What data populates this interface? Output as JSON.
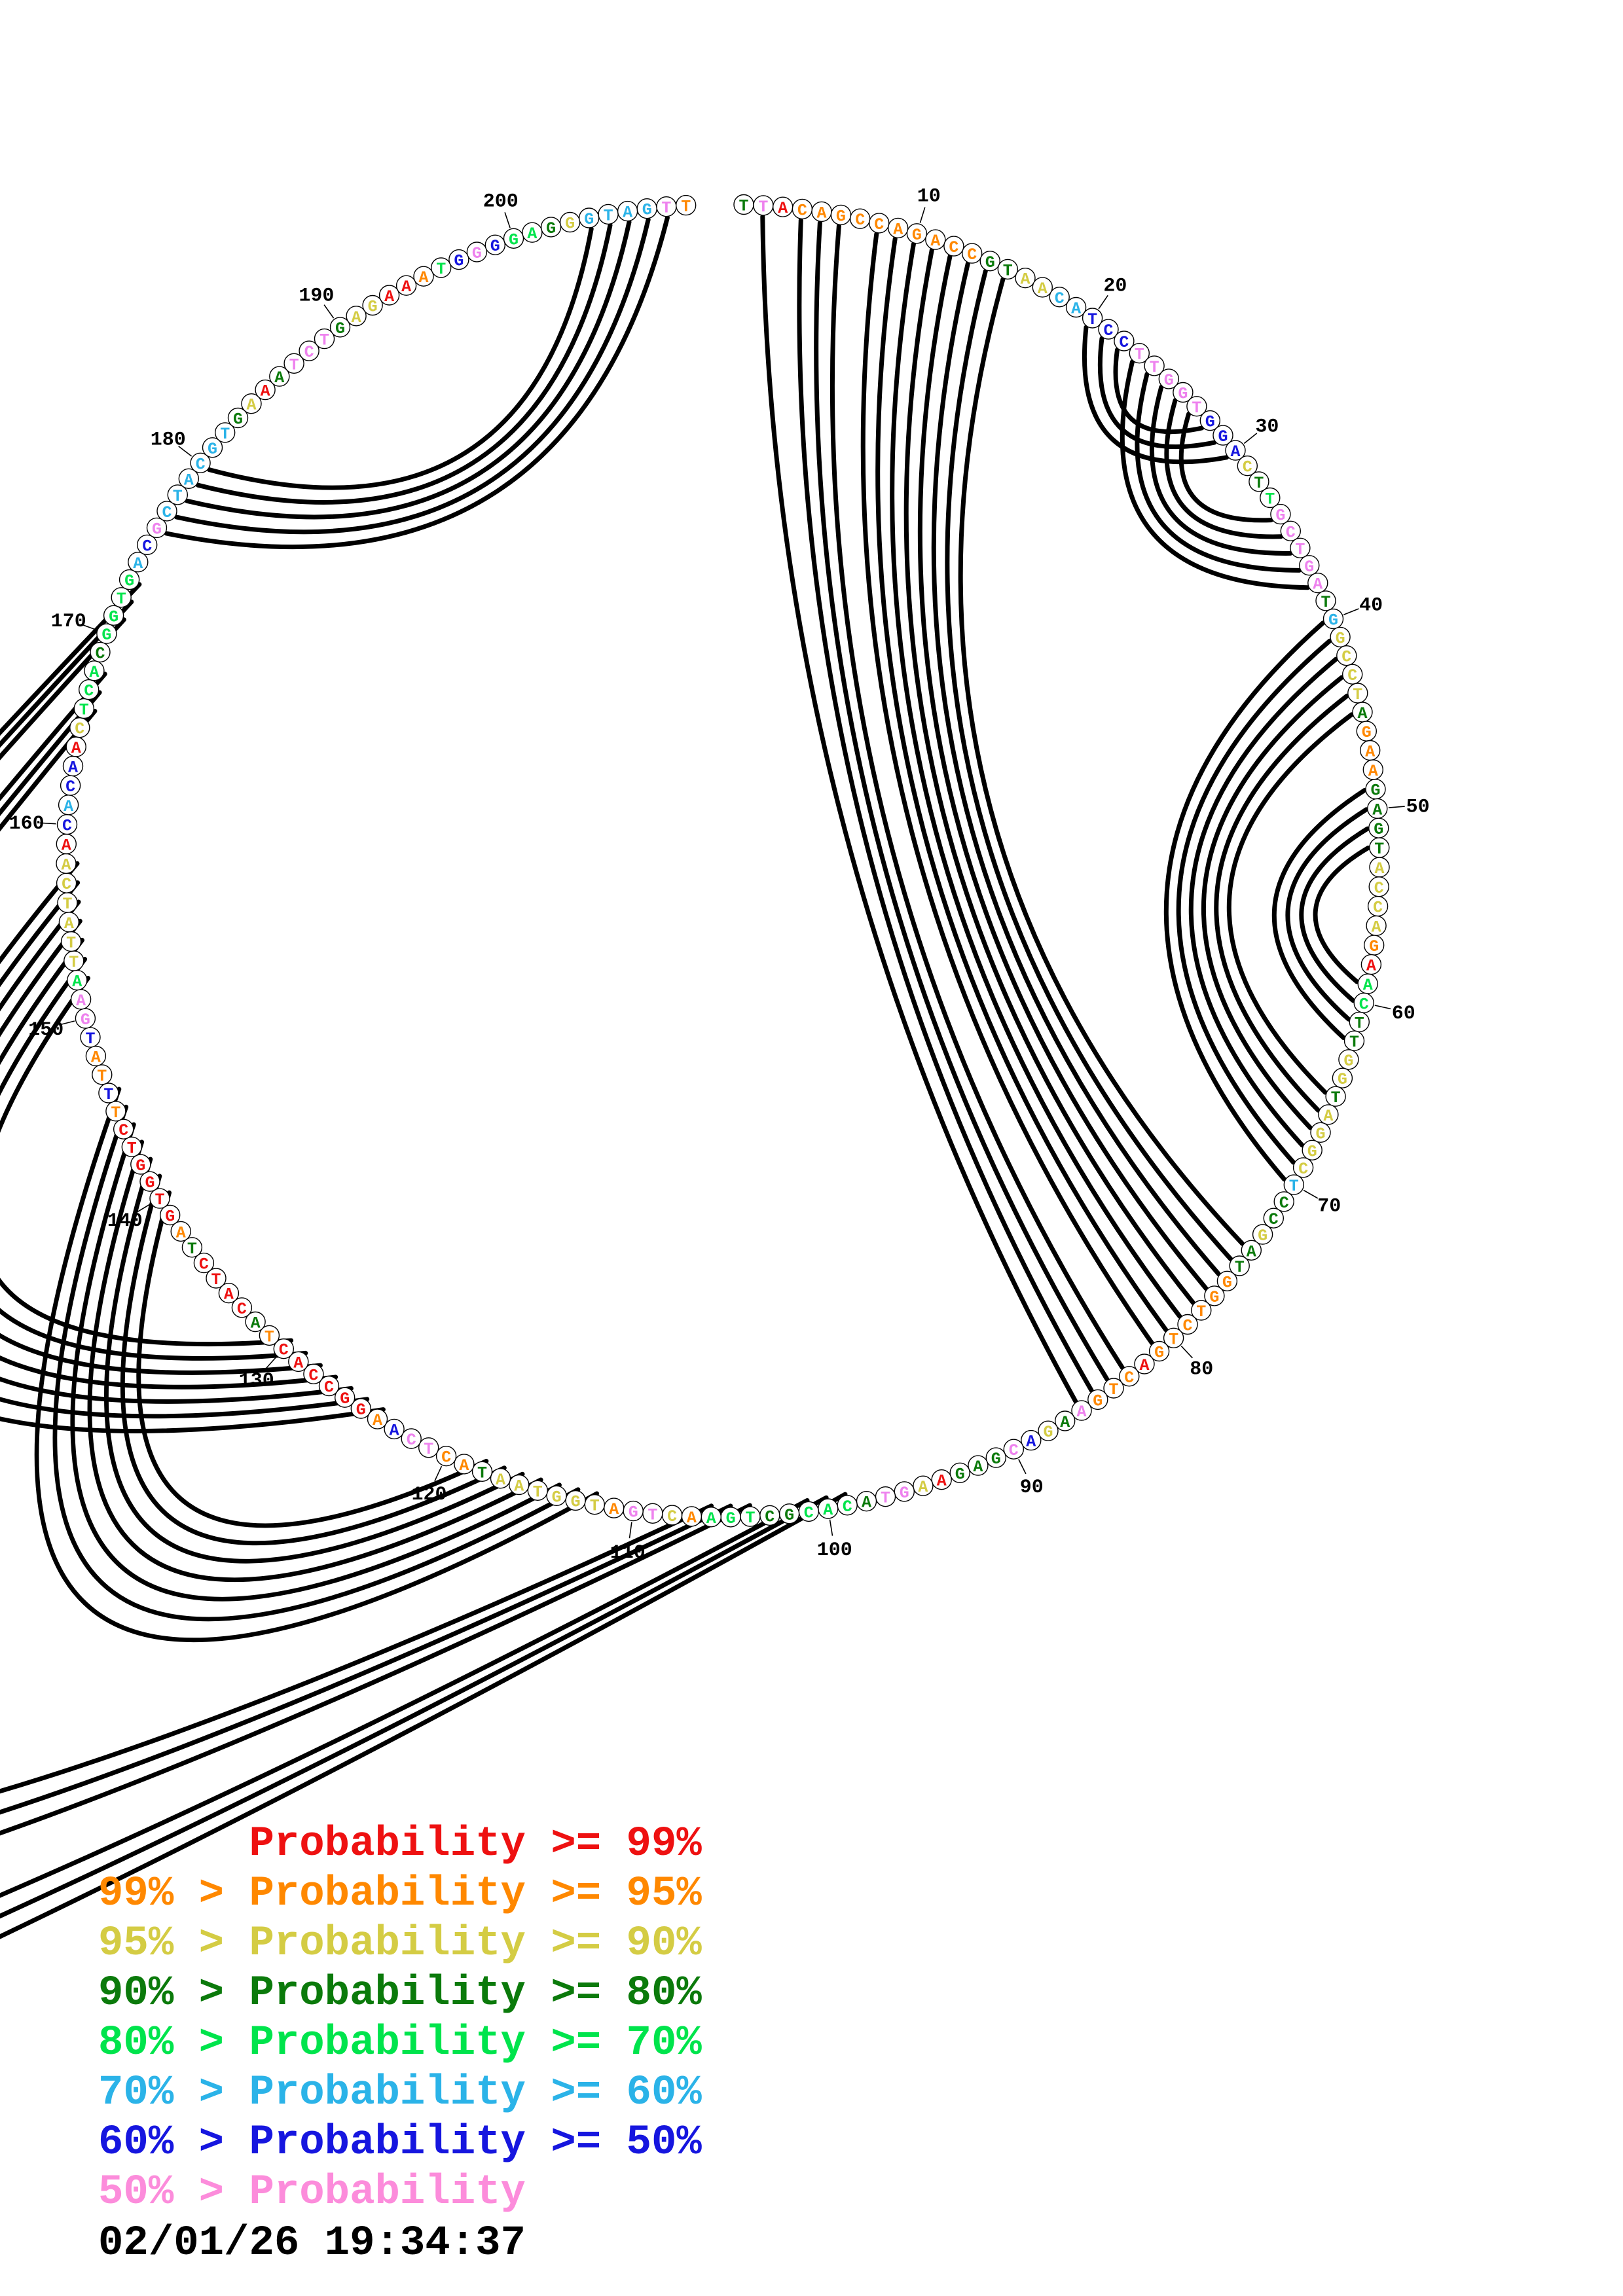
{
  "figure": {
    "sequence": "TTACAGCCAGACCGTAACATCCTTGGTGGACTTGCTGATGGCCTAGAAGAGTACCAGAACTTGGTAGGCTCCGATGGTCTGACTGAAGACGAGAAGTACACGCTGAACTGATGGTAATACTCAAGGCCACTACATCTAGTGGTCTTTATGAATTATCAACACAACTCACGGTGACGCTACGTGAAATCTGAGAAATGGGGAGGGTAGTT",
    "base_colors": "DVROOOOOOOOOODDYYCCBBBVVVVVBBBYDGVVVVVDCYYYYDOOODDDDYYYYORGGDDYYDYYYYCDDYDDOOOOOOROOOVDYBVDDDRYVVDGGGDDGGGOYVVOYYYYYYDOOVVBORRRRRRODRRRRDORRRRRROBOOBVVGYYYYYYRBCBBRYGGGDGGGGCBVCCCCCCDYRDVVVDYYRROGBVBGGDYCCCCVO",
    "pairs": [
      [
        2,
        86
      ],
      [
        4,
        85
      ],
      [
        5,
        84
      ],
      [
        6,
        83
      ],
      [
        8,
        81
      ],
      [
        9,
        80
      ],
      [
        10,
        79
      ],
      [
        11,
        78
      ],
      [
        12,
        77
      ],
      [
        13,
        76
      ],
      [
        14,
        75
      ],
      [
        15,
        74
      ],
      [
        20,
        30
      ],
      [
        21,
        29
      ],
      [
        22,
        28
      ],
      [
        23,
        38
      ],
      [
        24,
        37
      ],
      [
        25,
        36
      ],
      [
        26,
        35
      ],
      [
        27,
        34
      ],
      [
        40,
        70
      ],
      [
        41,
        69
      ],
      [
        42,
        68
      ],
      [
        43,
        67
      ],
      [
        44,
        66
      ],
      [
        45,
        65
      ],
      [
        49,
        62
      ],
      [
        50,
        61
      ],
      [
        51,
        60
      ],
      [
        52,
        59
      ],
      [
        140,
        118
      ],
      [
        141,
        117
      ],
      [
        142,
        116
      ],
      [
        143,
        115
      ],
      [
        144,
        114
      ],
      [
        145,
        113
      ],
      [
        146,
        112
      ],
      [
        152,
        130
      ],
      [
        153,
        129
      ],
      [
        154,
        128
      ],
      [
        155,
        127
      ],
      [
        156,
        126
      ],
      [
        157,
        125
      ],
      [
        158,
        124
      ],
      [
        166,
        106
      ],
      [
        167,
        105
      ],
      [
        168,
        104
      ],
      [
        171,
        101
      ],
      [
        172,
        100
      ],
      [
        173,
        99
      ],
      [
        176,
        208
      ],
      [
        177,
        207
      ],
      [
        178,
        206
      ],
      [
        179,
        205
      ],
      [
        180,
        204
      ]
    ],
    "tick_labels": [
      "10",
      "20",
      "30",
      "40",
      "50",
      "60",
      "70",
      "80",
      "90",
      "100",
      "110",
      "120",
      "130",
      "140",
      "150",
      "160",
      "170",
      "180",
      "190",
      "200"
    ]
  },
  "palette": {
    "R": "#EE1111",
    "O": "#FF8800",
    "Y": "#D4CC44",
    "D": "#0B7A0B",
    "G": "#00E44C",
    "C": "#2BB3E8",
    "B": "#1616DF",
    "V": "#EE82EE",
    "P": "#FC8CDB",
    "arc": "#000000"
  },
  "legend": {
    "rows": [
      {
        "text": "      Probability >= 99%",
        "color": "R"
      },
      {
        "text": "99% > Probability >= 95%",
        "color": "O"
      },
      {
        "text": "95% > Probability >= 90%",
        "color": "Y"
      },
      {
        "text": "90% > Probability >= 80%",
        "color": "D"
      },
      {
        "text": "80% > Probability >= 70%",
        "color": "G"
      },
      {
        "text": "70% > Probability >= 60%",
        "color": "C"
      },
      {
        "text": "60% > Probability >= 50%",
        "color": "B"
      },
      {
        "text": "50% > Probability",
        "color": "P"
      }
    ]
  },
  "timestamp": "02/01/26 19:34:37"
}
